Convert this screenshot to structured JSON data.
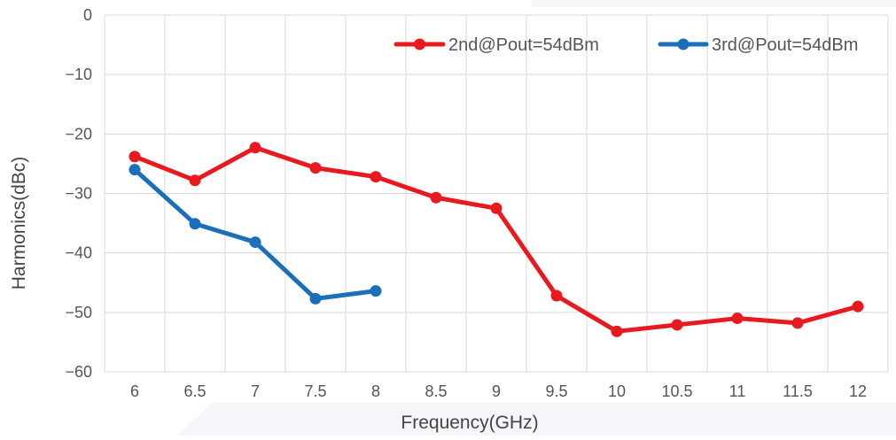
{
  "chart_data": {
    "type": "line",
    "title": "",
    "xlabel": "Frequency(GHz)",
    "ylabel": "Harmonics(dBc)",
    "categories": [
      "6",
      "6.5",
      "7",
      "7.5",
      "8",
      "8.5",
      "9",
      "9.5",
      "10",
      "10.5",
      "11",
      "11.5",
      "12"
    ],
    "ylim": [
      -60,
      0
    ],
    "yticks": [
      0,
      -10,
      -20,
      -30,
      -40,
      -50,
      -60
    ],
    "grid": true,
    "legend_position": "top-right",
    "series": [
      {
        "name": "2nd@Pout=54dBm",
        "color": "#e8191f",
        "values": [
          -23.8,
          -27.8,
          -22.3,
          -25.7,
          -27.2,
          -30.7,
          -32.5,
          -47.2,
          -53.2,
          -52.1,
          -51.0,
          -51.8,
          -49.0
        ]
      },
      {
        "name": "3rd@Pout=54dBm",
        "color": "#1a6fb8",
        "values": [
          -26.0,
          -35.1,
          -38.2,
          -47.7,
          -46.4,
          null,
          null,
          null,
          null,
          null,
          null,
          null,
          null
        ]
      }
    ]
  }
}
